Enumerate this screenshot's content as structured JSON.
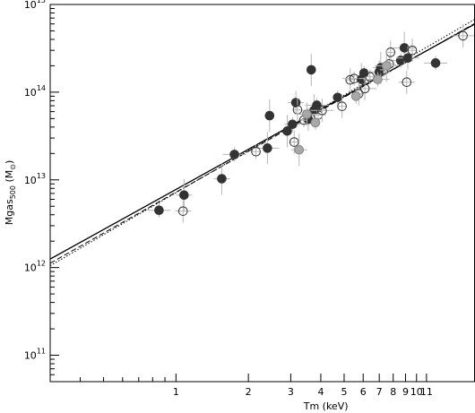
{
  "chart_data": {
    "type": "scatter",
    "xlabel": "Tm (keV)",
    "ylabel": "Mgas",
    "ylabel_sub": "500",
    "ylabel_unit": " (M",
    "ylabel_unit_sub": "⊙",
    "ylabel_unit_end": ")",
    "x_scale": "log",
    "y_scale": "log",
    "xlim": [
      0.3,
      17.5
    ],
    "ylim": [
      50000000000.0,
      1000000000000000.0
    ],
    "grid": false,
    "x_ticks": [
      {
        "v": 1,
        "label": "1"
      },
      {
        "v": 2,
        "label": "2"
      },
      {
        "v": 3,
        "label": "3"
      },
      {
        "v": 4,
        "label": "4"
      },
      {
        "v": 5,
        "label": "5"
      },
      {
        "v": 6,
        "label": "6"
      },
      {
        "v": 7,
        "label": "7"
      },
      {
        "v": 8,
        "label": "8"
      },
      {
        "v": 9,
        "label": "9"
      },
      {
        "v": 10,
        "label": "10"
      },
      {
        "v": 11,
        "label": "11"
      }
    ],
    "y_ticks": [
      {
        "v": 100000000000.0,
        "base": "10",
        "exp": "11"
      },
      {
        "v": 1000000000000.0,
        "base": "10",
        "exp": "12"
      },
      {
        "v": 10000000000000.0,
        "base": "10",
        "exp": "13"
      },
      {
        "v": 100000000000000.0,
        "base": "10",
        "exp": "14"
      },
      {
        "v": 1000000000000000.0,
        "base": "10",
        "exp": "15"
      }
    ],
    "series": [
      {
        "marker": "filled-black",
        "points": [
          [
            0.85,
            4500000000000.0
          ],
          [
            1.08,
            6700000000000.0
          ],
          [
            1.55,
            10300000000000.0
          ],
          [
            1.75,
            19500000000000.0
          ],
          [
            2.4,
            23000000000000.0
          ],
          [
            2.45,
            54000000000000.0
          ],
          [
            2.9,
            36000000000000.0
          ],
          [
            3.05,
            43000000000000.0
          ],
          [
            3.15,
            76000000000000.0
          ],
          [
            3.55,
            49000000000000.0
          ],
          [
            3.65,
            180000000000000.0
          ],
          [
            3.75,
            62000000000000.0
          ],
          [
            3.85,
            71000000000000.0
          ],
          [
            4.7,
            87000000000000.0
          ],
          [
            5.9,
            140000000000000.0
          ],
          [
            6.05,
            165000000000000.0
          ],
          [
            7.0,
            170000000000000.0
          ],
          [
            7.1,
            190000000000000.0
          ],
          [
            8.6,
            230000000000000.0
          ],
          [
            8.9,
            320000000000000.0
          ],
          [
            9.2,
            245000000000000.0
          ],
          [
            12.0,
            215000000000000.0
          ]
        ]
      },
      {
        "marker": "open-circle",
        "points": [
          [
            1.07,
            4400000000000.0
          ],
          [
            2.15,
            21000000000000.0
          ],
          [
            3.1,
            27000000000000.0
          ],
          [
            3.2,
            63000000000000.0
          ],
          [
            3.4,
            48000000000000.0
          ],
          [
            3.9,
            55000000000000.0
          ],
          [
            4.05,
            62000000000000.0
          ],
          [
            4.9,
            69000000000000.0
          ],
          [
            5.3,
            138000000000000.0
          ],
          [
            5.5,
            143000000000000.0
          ],
          [
            5.75,
            96000000000000.0
          ],
          [
            6.1,
            110000000000000.0
          ],
          [
            6.4,
            150000000000000.0
          ],
          [
            7.3,
            180000000000000.0
          ],
          [
            7.7,
            210000000000000.0
          ],
          [
            7.8,
            285000000000000.0
          ],
          [
            9.1,
            130000000000000.0
          ],
          [
            9.6,
            300000000000000.0
          ],
          [
            15.6,
            440000000000000.0
          ]
        ]
      },
      {
        "marker": "gray-filled",
        "points": [
          [
            3.25,
            22000000000000.0
          ],
          [
            3.5,
            56000000000000.0
          ],
          [
            3.8,
            45000000000000.0
          ],
          [
            5.6,
            90000000000000.0
          ],
          [
            6.9,
            140000000000000.0
          ],
          [
            7.5,
            200000000000000.0
          ]
        ]
      }
    ],
    "fits": [
      {
        "style": "solid",
        "x": [
          0.3,
          17.5
        ],
        "y": [
          1250000000000.0,
          600000000000000.0
        ]
      },
      {
        "style": "dashed",
        "x": [
          0.3,
          17.5
        ],
        "y": [
          1120000000000.0,
          610000000000000.0
        ]
      },
      {
        "style": "dotted",
        "x": [
          0.3,
          17.5
        ],
        "y": [
          1050000000000.0,
          680000000000000.0
        ]
      }
    ]
  }
}
